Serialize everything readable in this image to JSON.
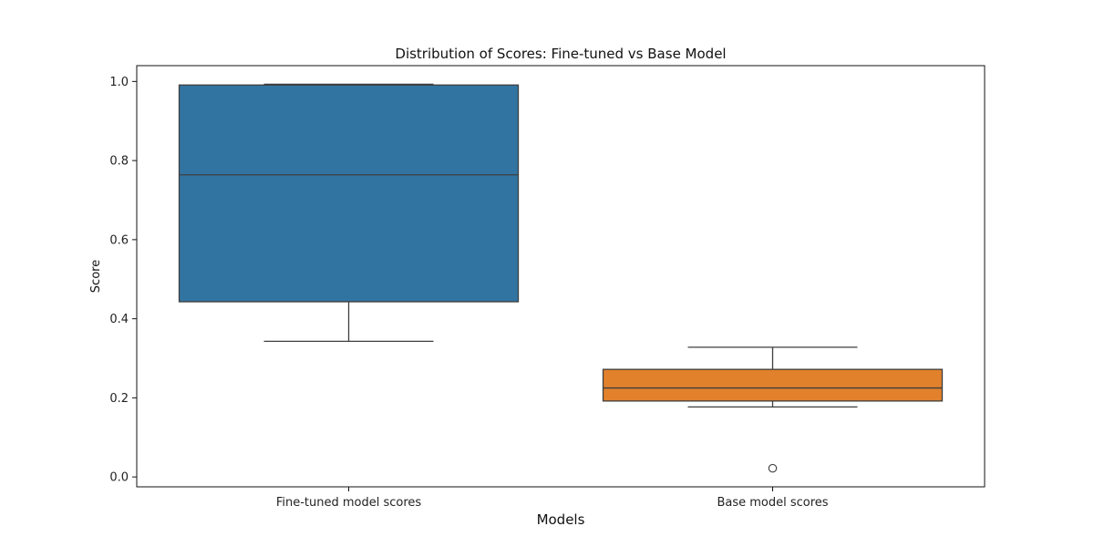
{
  "chart_data": {
    "type": "boxplot",
    "title": "Distribution of Scores: Fine-tuned vs Base Model",
    "xlabel": "Models",
    "ylabel": "Score",
    "ylim": [
      -0.025,
      1.04
    ],
    "yticks": [
      0.0,
      0.2,
      0.4,
      0.6,
      0.8,
      1.0
    ],
    "ytick_labels": [
      "0.0",
      "0.2",
      "0.4",
      "0.6",
      "0.8",
      "1.0"
    ],
    "categories": [
      "Fine-tuned model scores",
      "Base model scores"
    ],
    "grid": false,
    "legend": "none",
    "boxes": [
      {
        "category": "Fine-tuned model scores",
        "whisker_low": 0.343,
        "q1": 0.443,
        "median": 0.764,
        "q3": 0.991,
        "whisker_high": 0.993,
        "outliers": [],
        "color": "#3274a1"
      },
      {
        "category": "Base model scores",
        "whisker_low": 0.177,
        "q1": 0.192,
        "median": 0.225,
        "q3": 0.272,
        "whisker_high": 0.328,
        "outliers": [
          0.022
        ],
        "color": "#e1812c"
      }
    ]
  }
}
